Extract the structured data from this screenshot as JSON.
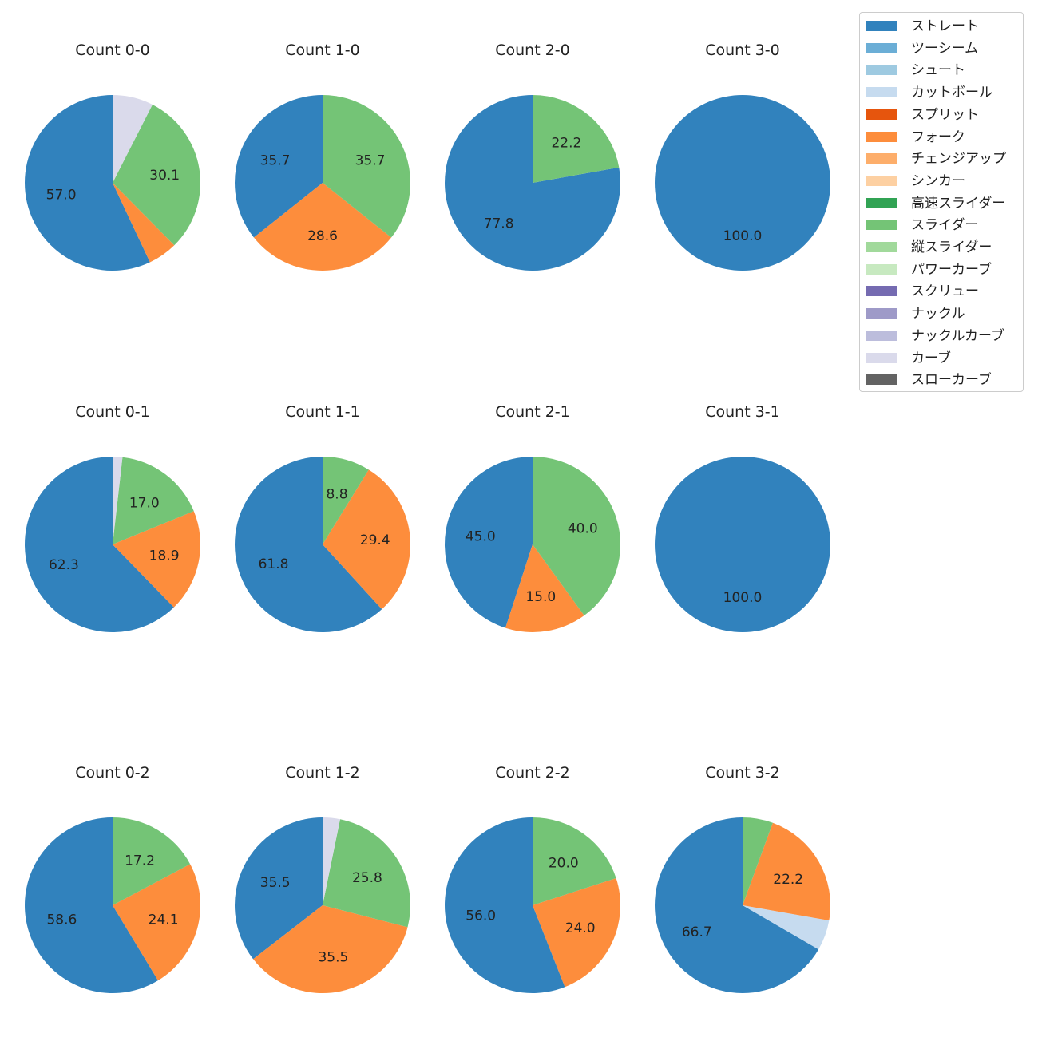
{
  "chart_data": [
    {
      "type": "pie",
      "title": "Count 0-0",
      "slices": [
        {
          "label": "ストレート",
          "value": 57.0
        },
        {
          "label": "フォーク",
          "value": 5.4
        },
        {
          "label": "スライダー",
          "value": 30.1
        },
        {
          "label": "カーブ",
          "value": 7.5
        }
      ],
      "value_labels": [
        "57.0",
        "",
        "30.1",
        ""
      ]
    },
    {
      "type": "pie",
      "title": "Count 1-0",
      "slices": [
        {
          "label": "ストレート",
          "value": 35.7
        },
        {
          "label": "フォーク",
          "value": 28.6
        },
        {
          "label": "スライダー",
          "value": 35.7
        }
      ],
      "value_labels": [
        "35.7",
        "28.6",
        "35.7"
      ]
    },
    {
      "type": "pie",
      "title": "Count 2-0",
      "slices": [
        {
          "label": "ストレート",
          "value": 77.8
        },
        {
          "label": "スライダー",
          "value": 22.2
        }
      ],
      "value_labels": [
        "77.8",
        "22.2"
      ]
    },
    {
      "type": "pie",
      "title": "Count 3-0",
      "slices": [
        {
          "label": "ストレート",
          "value": 100.0
        }
      ],
      "value_labels": [
        "100.0"
      ]
    },
    {
      "type": "pie",
      "title": "Count 0-1",
      "slices": [
        {
          "label": "ストレート",
          "value": 62.3
        },
        {
          "label": "フォーク",
          "value": 18.9
        },
        {
          "label": "スライダー",
          "value": 17.0
        },
        {
          "label": "カーブ",
          "value": 1.8
        }
      ],
      "value_labels": [
        "62.3",
        "18.9",
        "17.0",
        ""
      ]
    },
    {
      "type": "pie",
      "title": "Count 1-1",
      "slices": [
        {
          "label": "ストレート",
          "value": 61.8
        },
        {
          "label": "フォーク",
          "value": 29.4
        },
        {
          "label": "スライダー",
          "value": 8.8
        }
      ],
      "value_labels": [
        "61.8",
        "29.4",
        "8.8"
      ]
    },
    {
      "type": "pie",
      "title": "Count 2-1",
      "slices": [
        {
          "label": "ストレート",
          "value": 45.0
        },
        {
          "label": "フォーク",
          "value": 15.0
        },
        {
          "label": "スライダー",
          "value": 40.0
        }
      ],
      "value_labels": [
        "45.0",
        "15.0",
        "40.0"
      ]
    },
    {
      "type": "pie",
      "title": "Count 3-1",
      "slices": [
        {
          "label": "ストレート",
          "value": 100.0
        }
      ],
      "value_labels": [
        "100.0"
      ]
    },
    {
      "type": "pie",
      "title": "Count 0-2",
      "slices": [
        {
          "label": "ストレート",
          "value": 58.6
        },
        {
          "label": "フォーク",
          "value": 24.1
        },
        {
          "label": "スライダー",
          "value": 17.2
        }
      ],
      "value_labels": [
        "58.6",
        "24.1",
        "17.2"
      ]
    },
    {
      "type": "pie",
      "title": "Count 1-2",
      "slices": [
        {
          "label": "ストレート",
          "value": 35.5
        },
        {
          "label": "フォーク",
          "value": 35.5
        },
        {
          "label": "スライダー",
          "value": 25.8
        },
        {
          "label": "カーブ",
          "value": 3.2
        }
      ],
      "value_labels": [
        "35.5",
        "35.5",
        "25.8",
        ""
      ]
    },
    {
      "type": "pie",
      "title": "Count 2-2",
      "slices": [
        {
          "label": "ストレート",
          "value": 56.0
        },
        {
          "label": "フォーク",
          "value": 24.0
        },
        {
          "label": "スライダー",
          "value": 20.0
        }
      ],
      "value_labels": [
        "56.0",
        "24.0",
        "20.0"
      ]
    },
    {
      "type": "pie",
      "title": "Count 3-2",
      "slices": [
        {
          "label": "ストレート",
          "value": 66.7
        },
        {
          "label": "カットボール",
          "value": 5.6
        },
        {
          "label": "フォーク",
          "value": 22.2
        },
        {
          "label": "スライダー",
          "value": 5.6
        }
      ],
      "value_labels": [
        "66.7",
        "",
        "22.2",
        ""
      ]
    }
  ],
  "legend": {
    "placement": "top-right",
    "items": [
      {
        "label": "ストレート",
        "color": "#3182bd"
      },
      {
        "label": "ツーシーム",
        "color": "#6baed6"
      },
      {
        "label": "シュート",
        "color": "#9ecae1"
      },
      {
        "label": "カットボール",
        "color": "#c6dbef"
      },
      {
        "label": "スプリット",
        "color": "#e6550d"
      },
      {
        "label": "フォーク",
        "color": "#fd8d3c"
      },
      {
        "label": "チェンジアップ",
        "color": "#fdae6b"
      },
      {
        "label": "シンカー",
        "color": "#fdd0a2"
      },
      {
        "label": "高速スライダー",
        "color": "#31a354"
      },
      {
        "label": "スライダー",
        "color": "#74c476"
      },
      {
        "label": "縦スライダー",
        "color": "#a1d99b"
      },
      {
        "label": "パワーカーブ",
        "color": "#c7e9c0"
      },
      {
        "label": "スクリュー",
        "color": "#756bb1"
      },
      {
        "label": "ナックル",
        "color": "#9e9ac8"
      },
      {
        "label": "ナックルカーブ",
        "color": "#bcbddc"
      },
      {
        "label": "カーブ",
        "color": "#dadaeb"
      },
      {
        "label": "スローカーブ",
        "color": "#636363"
      }
    ]
  }
}
